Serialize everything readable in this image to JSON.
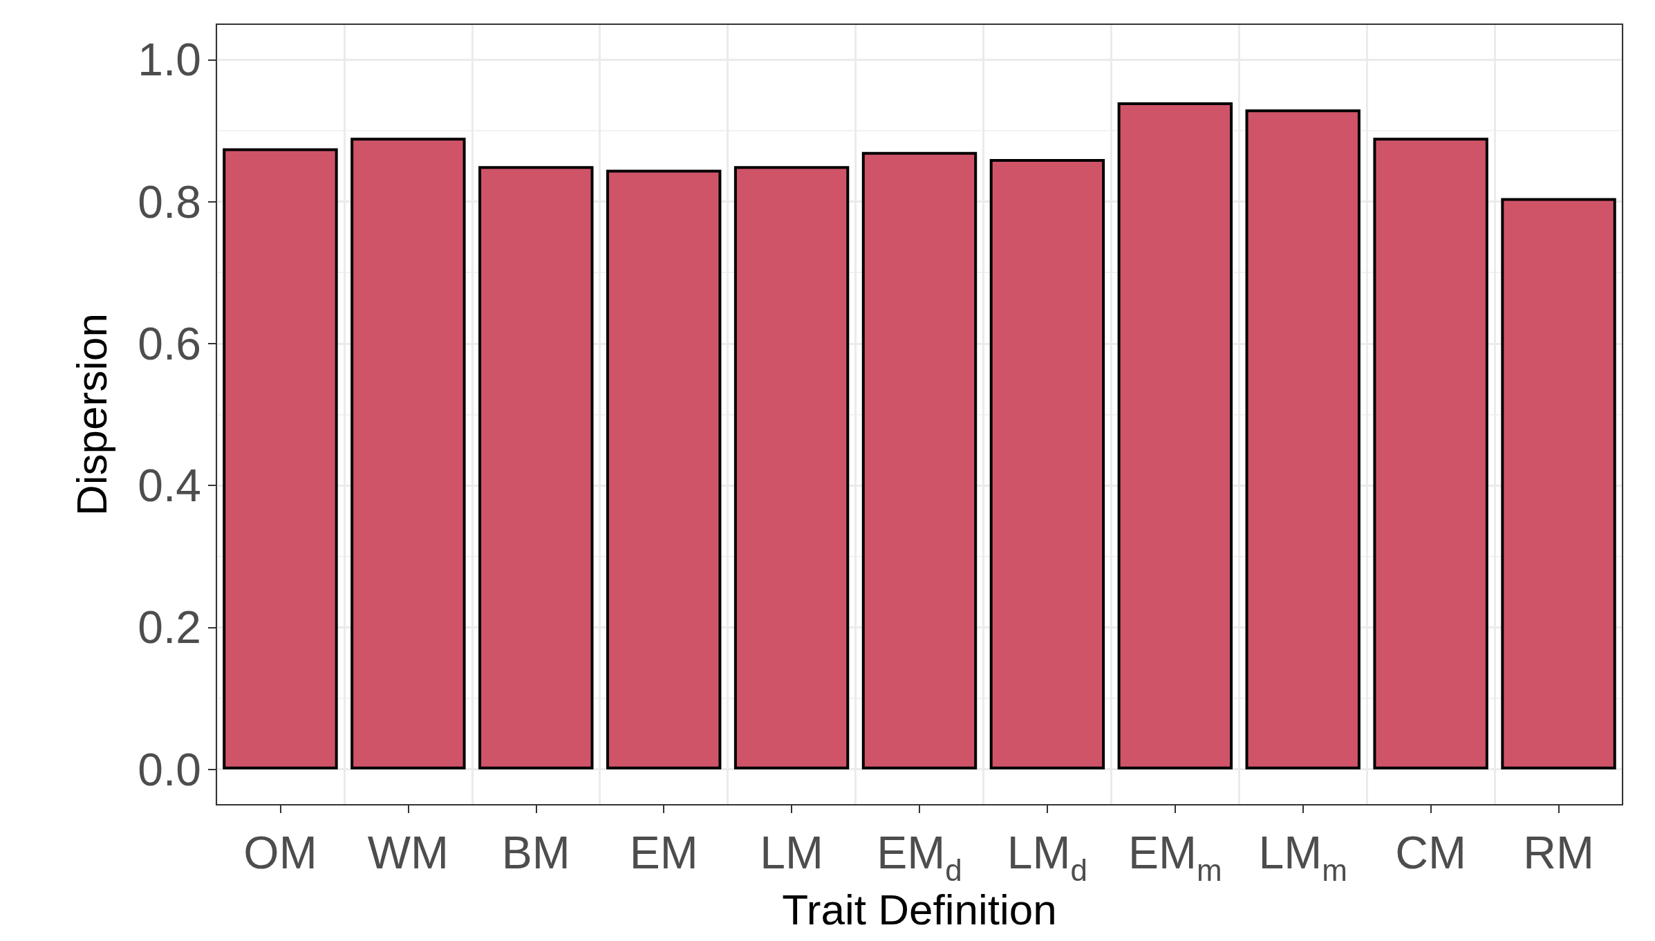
{
  "chart_data": {
    "type": "bar",
    "xlabel": "Trait Definition",
    "ylabel": "Dispersion",
    "categories": [
      "OM",
      "WM",
      "BM",
      "EM",
      "LM",
      "EM$_{d}$",
      "LM$_{d}$",
      "EM$_{m}$",
      "LM$_{m}$",
      "CM",
      "RM"
    ],
    "values": [
      0.875,
      0.89,
      0.85,
      0.845,
      0.85,
      0.87,
      0.86,
      0.94,
      0.93,
      0.89,
      0.805
    ],
    "color": "#cf5468",
    "ylim": [
      -0.05,
      1.05
    ],
    "yticks": [
      {
        "value": 0,
        "label": "0.0"
      },
      0.2,
      0.4,
      0.6,
      0.8,
      {
        "value": 1,
        "label": "1.0"
      }
    ],
    "grid": true
  }
}
